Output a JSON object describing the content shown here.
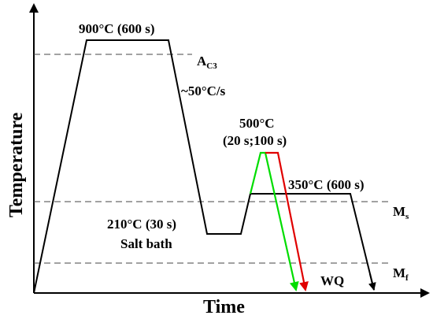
{
  "axes": {
    "x_label": "Time",
    "y_label": "Temperature"
  },
  "reference_lines": {
    "ac3": {
      "main": "A",
      "sub": "C3"
    },
    "ms": {
      "main": "M",
      "sub": "s"
    },
    "mf": {
      "main": "M",
      "sub": "f"
    }
  },
  "annotations": {
    "austenitize": "900°C (600 s)",
    "cooling_rate": "~50°C/s",
    "quench_temp": "210°C (30 s)",
    "quench_medium": "Salt bath",
    "partition_short_temp": "500°C",
    "partition_short_times": "(20 s;100 s)",
    "partition_long": "350°C (600 s)",
    "final_quench": "WQ"
  },
  "colors": {
    "main_path": "#000000",
    "short_partition_20s": "#00dd00",
    "short_partition_100s": "#e00000",
    "dashed_lines": "#444444"
  }
}
